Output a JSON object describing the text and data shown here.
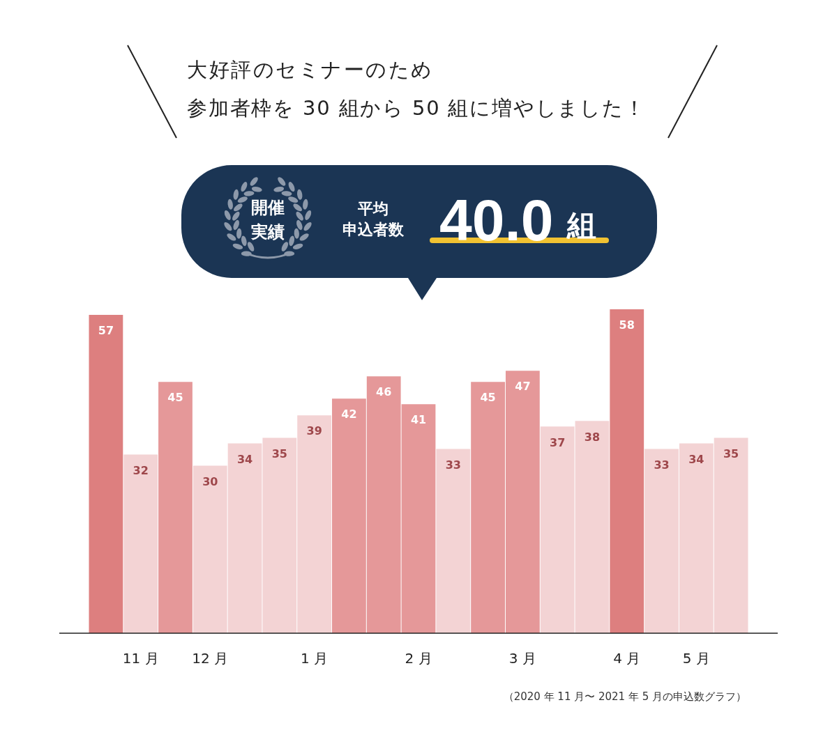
{
  "chart_data": {
    "type": "bar",
    "title": "大好評のセミナーのため",
    "subtitle": "参加者枠を 30 組から 50 組に増やしました！",
    "categories": [
      null,
      "11 月",
      null,
      "12 月",
      null,
      null,
      "1 月",
      null,
      null,
      "2 月",
      null,
      null,
      "3 月",
      null,
      null,
      "4 月",
      null,
      "5 月",
      null
    ],
    "values": [
      57,
      32,
      45,
      30,
      34,
      35,
      39,
      42,
      46,
      41,
      33,
      45,
      47,
      37,
      38,
      58,
      33,
      34,
      35
    ],
    "colors": [
      "#dd7f7f",
      "#f3d3d4",
      "#e59899",
      "#f3d3d4",
      "#f3d3d4",
      "#f3d3d4",
      "#f3d3d4",
      "#e59899",
      "#e59899",
      "#e59899",
      "#f3d3d4",
      "#e59899",
      "#e59899",
      "#f3d3d4",
      "#f3d3d4",
      "#dd7f7f",
      "#f3d3d4",
      "#f3d3d4",
      "#f3d3d4"
    ],
    "ylim": [
      0,
      58
    ],
    "tick_labels": "x",
    "data_labels": true,
    "grid": false,
    "legend": false,
    "annotations": [
      "開催実績",
      "平均",
      "申込者数",
      "40.0",
      "組",
      "（2020 年 11 月〜 2021 年 5 月の申込数グラフ）"
    ]
  }
}
